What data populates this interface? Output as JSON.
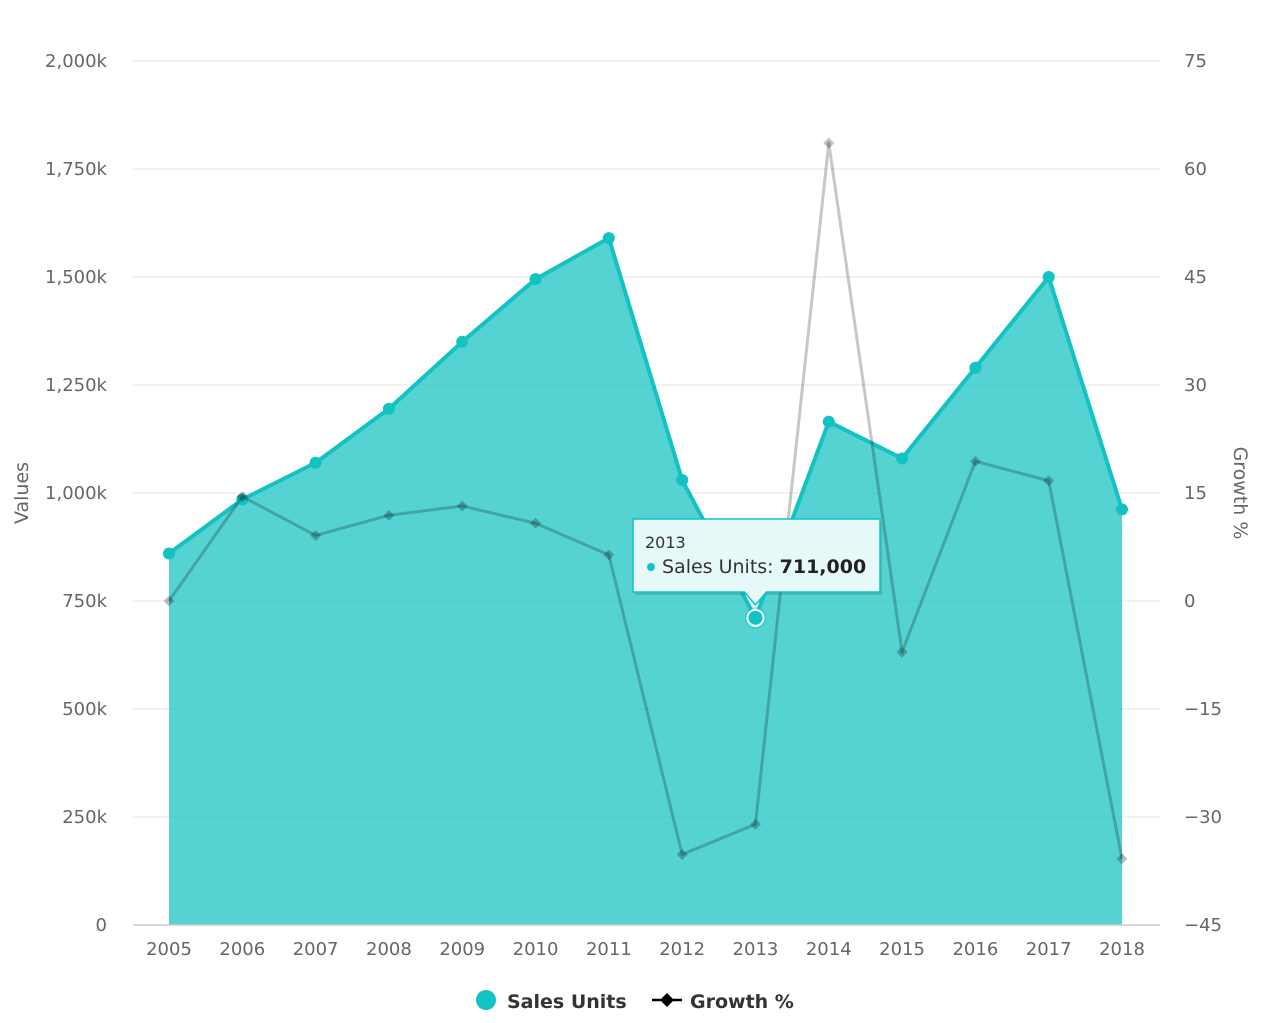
{
  "chart_data": {
    "type": "area",
    "categories": [
      "2005",
      "2006",
      "2007",
      "2008",
      "2009",
      "2010",
      "2011",
      "2012",
      "2013",
      "2014",
      "2015",
      "2016",
      "2017",
      "2018"
    ],
    "series": [
      {
        "name": "Sales Units",
        "type": "area",
        "axis": "left",
        "color": "#13C2C2",
        "values": [
          860000,
          985000,
          1070000,
          1195000,
          1350000,
          1495000,
          1590000,
          1030000,
          711000,
          1165000,
          1080000,
          1290000,
          1500000,
          962000
        ]
      },
      {
        "name": "Growth %",
        "type": "line",
        "axis": "right",
        "color": "#000000",
        "values": [
          0,
          14.5,
          9.1,
          11.9,
          13.2,
          10.8,
          6.4,
          -35.2,
          -31.0,
          63.6,
          -7.1,
          19.4,
          16.7,
          -35.8
        ]
      }
    ],
    "yaxis_left": {
      "title": "Values",
      "min": 0,
      "max": 2000000,
      "ticks": [
        0,
        250000,
        500000,
        750000,
        1000000,
        1250000,
        1500000,
        1750000,
        2000000
      ],
      "tick_labels": [
        "0",
        "250k",
        "500k",
        "750k",
        "1,000k",
        "1,250k",
        "1,500k",
        "1,750k",
        "2,000k"
      ]
    },
    "yaxis_right": {
      "title": "Growth %",
      "min": -45,
      "max": 75,
      "ticks": [
        -45,
        -30,
        -15,
        0,
        15,
        30,
        45,
        60,
        75
      ],
      "tick_labels": [
        "−45",
        "−30",
        "−15",
        "0",
        "15",
        "30",
        "45",
        "60",
        "75"
      ]
    },
    "grid": true,
    "legend_position": "bottom",
    "legend": [
      {
        "name": "Sales Units",
        "symbol": "circle"
      },
      {
        "name": "Growth %",
        "symbol": "line-diamond"
      }
    ],
    "tooltip": {
      "category": "2013",
      "series_label": "Sales Units: ",
      "value_label": "711,000"
    }
  }
}
